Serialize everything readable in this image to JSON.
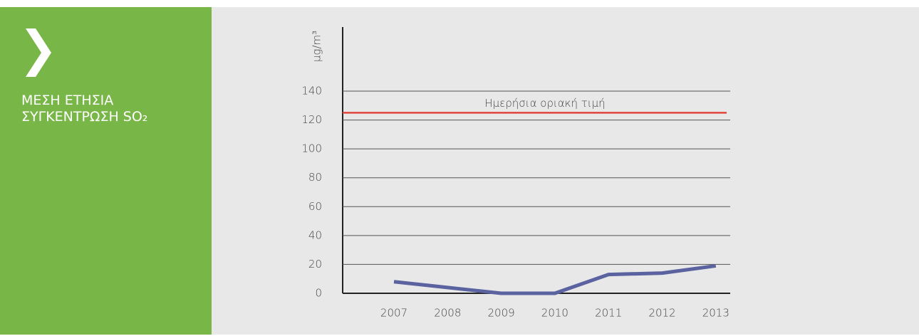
{
  "sidebar": {
    "title_lines": [
      "ΜΕΣΗ ΕΤΗΣΙΑ",
      "ΣΥΓΚΕΝΤΡΩΣΗ SO₂"
    ]
  },
  "chart_data": {
    "type": "line",
    "y_label": "μg/m³",
    "categories": [
      "2007",
      "2008",
      "2009",
      "2010",
      "2011",
      "2012",
      "2013"
    ],
    "series": [
      {
        "name": "SO₂",
        "color": "#5a62a0",
        "values": [
          8,
          4,
          0,
          0,
          13,
          14,
          19
        ]
      }
    ],
    "ylim": [
      0,
      140
    ],
    "yticks": [
      0,
      20,
      40,
      60,
      80,
      100,
      120,
      140
    ],
    "grid": true,
    "annotations": [
      {
        "label": "Ημερήσια οριακή τιμή",
        "value": 125,
        "color": "#e0453d"
      }
    ]
  }
}
